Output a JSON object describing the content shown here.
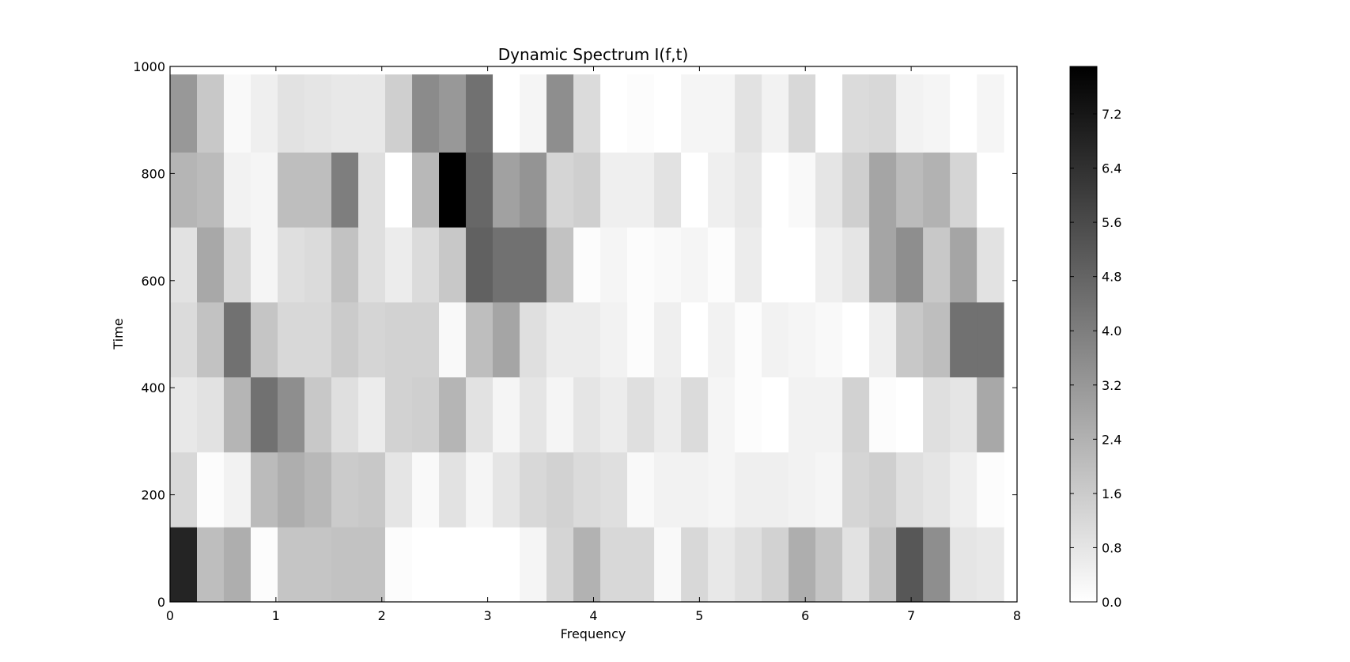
{
  "chart_data": {
    "type": "heatmap",
    "title": "Dynamic Spectrum I(f,t)",
    "xlabel": "Frequency",
    "ylabel": "Time",
    "xlim": [
      0,
      8
    ],
    "ylim": [
      0,
      1000
    ],
    "x_ticks": [
      "0",
      "1",
      "2",
      "3",
      "4",
      "5",
      "6",
      "7",
      "8"
    ],
    "y_ticks": [
      "0",
      "200",
      "400",
      "600",
      "800",
      "1000"
    ],
    "colormap": "gray_r",
    "vmin": 0.0,
    "vmax": 7.9,
    "colorbar_ticks": [
      "0.0",
      "0.8",
      "1.6",
      "2.4",
      "3.2",
      "4.0",
      "4.8",
      "5.6",
      "6.4",
      "7.2"
    ],
    "grid": false,
    "freq_bin_width": 0.254,
    "time_bin_edges": [
      0,
      140,
      280,
      420,
      560,
      700,
      840,
      985
    ],
    "rows_bottom_to_top": [
      [
        6.8,
        2.0,
        2.5,
        0.1,
        1.8,
        1.8,
        1.9,
        1.9,
        0.1,
        0.0,
        0.0,
        0.0,
        0.0,
        0.3,
        1.3,
        2.4,
        1.2,
        1.2,
        0.2,
        1.2,
        0.7,
        1.0,
        1.4,
        2.5,
        1.8,
        0.9,
        1.8,
        5.2,
        3.5,
        0.8,
        0.7
      ],
      [
        1.2,
        0.1,
        0.4,
        2.1,
        2.5,
        2.2,
        1.6,
        1.7,
        0.8,
        0.2,
        0.9,
        0.3,
        0.8,
        1.2,
        1.4,
        1.1,
        1.0,
        0.2,
        0.4,
        0.4,
        0.3,
        0.5,
        0.5,
        0.4,
        0.3,
        1.3,
        1.5,
        1.0,
        0.8,
        0.5,
        0.1
      ],
      [
        0.7,
        0.9,
        2.3,
        4.4,
        3.5,
        1.7,
        1.0,
        0.6,
        1.4,
        1.5,
        2.3,
        0.9,
        0.3,
        0.8,
        0.3,
        0.8,
        0.6,
        1.0,
        0.6,
        1.1,
        0.3,
        0.1,
        0.0,
        0.4,
        0.4,
        1.4,
        0.1,
        0.0,
        1.0,
        0.8,
        2.7
      ],
      [
        1.1,
        1.9,
        4.4,
        1.8,
        1.2,
        1.2,
        1.6,
        1.3,
        1.4,
        1.4,
        0.2,
        2.0,
        2.8,
        1.0,
        0.6,
        0.6,
        0.4,
        0.1,
        0.5,
        0.0,
        0.4,
        0.1,
        0.4,
        0.3,
        0.2,
        0.0,
        0.5,
        1.7,
        2.0,
        4.4,
        4.4
      ],
      [
        0.9,
        2.7,
        1.2,
        0.3,
        1.0,
        1.1,
        1.9,
        1.0,
        0.6,
        1.1,
        1.7,
        4.9,
        4.4,
        4.4,
        1.9,
        0.1,
        0.3,
        0.1,
        0.2,
        0.3,
        0.1,
        0.6,
        0.0,
        0.0,
        0.5,
        0.8,
        2.8,
        3.5,
        1.7,
        2.8,
        0.9
      ],
      [
        2.3,
        2.1,
        0.4,
        0.3,
        2.0,
        2.0,
        4.0,
        1.0,
        0.0,
        2.2,
        7.9,
        4.7,
        2.9,
        3.3,
        1.3,
        1.5,
        0.5,
        0.5,
        0.9,
        0.0,
        0.5,
        0.7,
        0.0,
        0.2,
        0.8,
        1.5,
        2.8,
        2.1,
        2.4,
        1.3,
        0.0
      ],
      [
        3.2,
        1.7,
        0.2,
        0.5,
        0.9,
        0.8,
        0.7,
        0.7,
        1.5,
        3.6,
        3.2,
        4.4,
        0.0,
        0.3,
        3.5,
        1.1,
        0.0,
        0.1,
        0.0,
        0.3,
        0.3,
        0.9,
        0.4,
        1.2,
        0.0,
        1.1,
        1.2,
        0.4,
        0.3,
        0.0,
        0.3
      ]
    ]
  }
}
